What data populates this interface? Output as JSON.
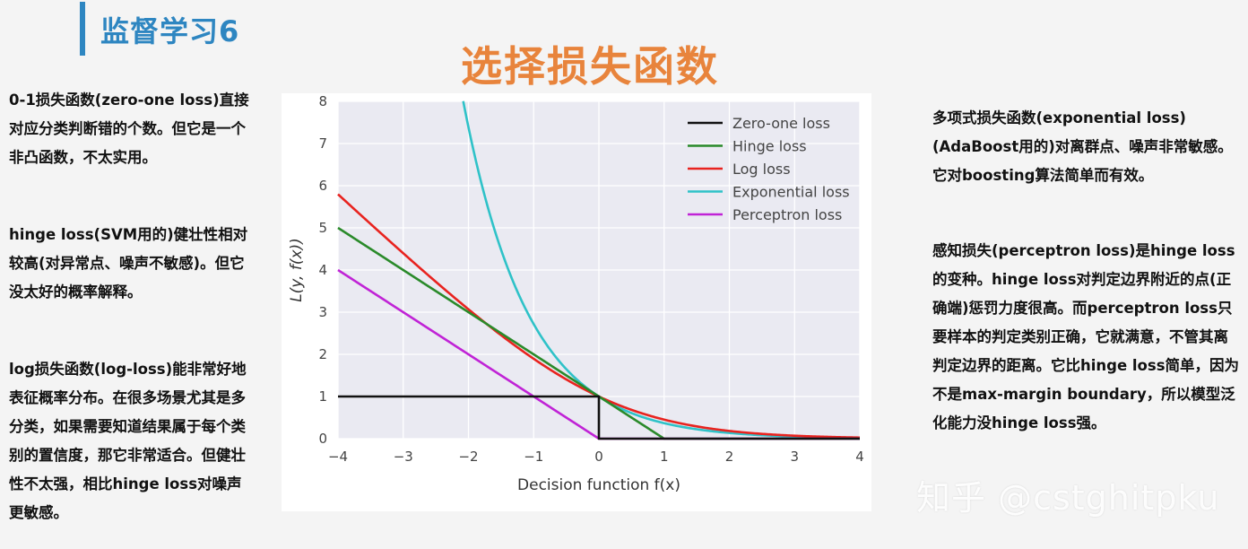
{
  "header": {
    "page_title": "监督学习6",
    "main_title": "选择损失函数"
  },
  "left_column": {
    "paragraphs": [
      "0-1损失函数(zero-one loss)直接对应分类判断错的个数。但它是一个非凸函数，不太实用。",
      "hinge loss(SVM用的)健壮性相对较高(对异常点、噪声不敏感)。但它没太好的概率解释。",
      " log损失函数(log-loss)能非常好地表征概率分布。在很多场景尤其是多分类，如果需要知道结果属于每个类别的置信度，那它非常适合。但健壮性不太强，相比hinge loss对噪声更敏感。"
    ]
  },
  "right_column": {
    "paragraphs": [
      "多项式损失函数(exponential loss)(AdaBoost用的)对离群点、噪声非常敏感。它对boosting算法简单而有效。",
      "感知损失(perceptron loss)是hinge loss的变种。hinge loss对判定边界附近的点(正确端)惩罚力度很高。而perceptron loss只要样本的判定类别正确，它就满意，不管其离判定边界的距离。它比hinge loss简单，因为不是max-margin boundary，所以模型泛化能力没hinge loss强。"
    ]
  },
  "watermark": "知乎 @cstghitpku",
  "chart_data": {
    "type": "line",
    "xlabel": "Decision function f(x)",
    "ylabel": "L(y, f(x))",
    "xlim": [
      -4,
      4
    ],
    "ylim": [
      0,
      8
    ],
    "x_ticks": [
      "−4",
      "−3",
      "−2",
      "−1",
      "0",
      "1",
      "2",
      "3",
      "4"
    ],
    "y_ticks": [
      "0",
      "1",
      "2",
      "3",
      "4",
      "5",
      "6",
      "7",
      "8"
    ],
    "grid": true,
    "legend_position": "top-right",
    "series": [
      {
        "name": "Zero-one loss",
        "color": "#111111",
        "function": "zero_one",
        "x": [
          -4,
          0,
          0,
          4
        ],
        "y": [
          1,
          1,
          0,
          0
        ]
      },
      {
        "name": "Hinge loss",
        "color": "#2a8a2a",
        "function": "hinge",
        "x": [
          -4,
          1,
          4
        ],
        "y": [
          5,
          0,
          0
        ]
      },
      {
        "name": "Log loss",
        "color": "#e8231f",
        "function": "log",
        "x": [
          -4,
          -2,
          0,
          2,
          4
        ],
        "y": [
          5.83,
          3.07,
          1.0,
          0.18,
          0.03
        ]
      },
      {
        "name": "Exponential loss",
        "color": "#2fc2c8",
        "function": "exp",
        "x": [
          -2.08,
          -1,
          0,
          1,
          2,
          4
        ],
        "y": [
          8,
          2.72,
          1.0,
          0.37,
          0.14,
          0.02
        ]
      },
      {
        "name": "Perceptron loss",
        "color": "#c023d6",
        "function": "perceptron",
        "x": [
          -4,
          0,
          4
        ],
        "y": [
          4,
          0,
          0
        ]
      }
    ]
  }
}
